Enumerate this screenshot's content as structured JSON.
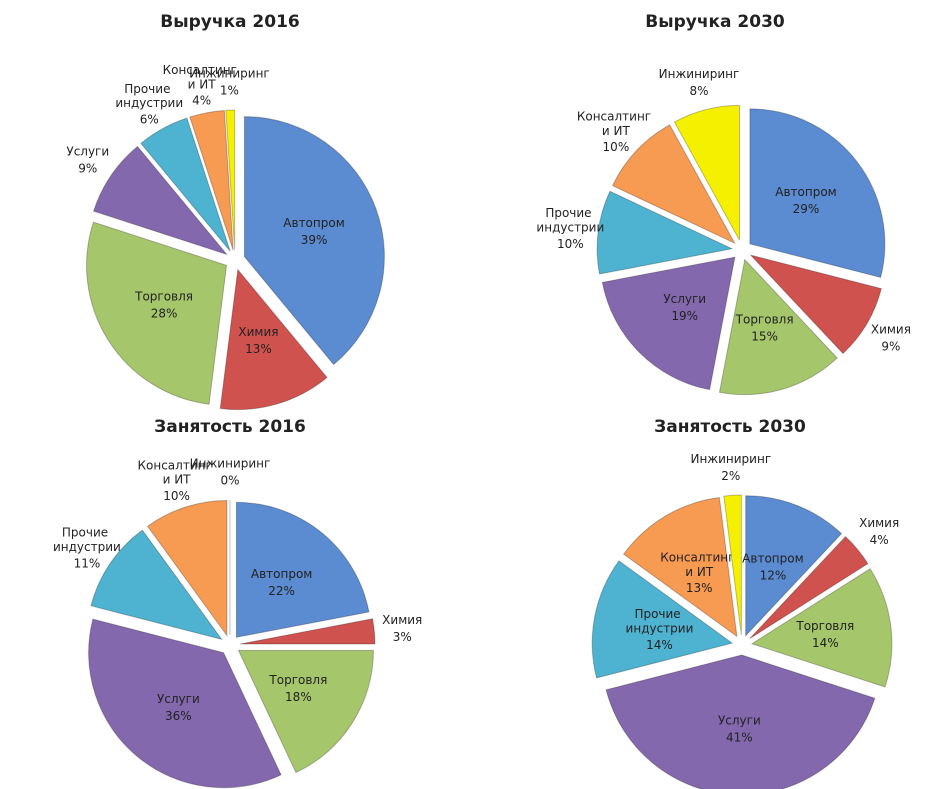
{
  "chart_data": [
    {
      "type": "pie",
      "title": "Выручка 2016",
      "categories": [
        "Автопром",
        "Химия",
        "Торговля",
        "Услуги",
        "Прочие индустрии",
        "Консалтинг и ИТ",
        "Инжиниринг"
      ],
      "values": [
        39,
        13,
        28,
        9,
        6,
        4,
        1
      ],
      "value_labels": [
        "39%",
        "13%",
        "28%",
        "9%",
        "6%",
        "4%",
        "1%"
      ],
      "colors": [
        "#5b8bd0",
        "#d0524e",
        "#a5c66a",
        "#8468ad",
        "#4db3d0",
        "#f79a52",
        "#f5f000"
      ]
    },
    {
      "type": "pie",
      "title": "Выручка 2030",
      "categories": [
        "Автопром",
        "Химия",
        "Торговля",
        "Услуги",
        "Прочие индустрии",
        "Консалтинг и ИТ",
        "Инжиниринг"
      ],
      "values": [
        29,
        9,
        15,
        19,
        10,
        10,
        8
      ],
      "value_labels": [
        "29%",
        "9%",
        "15%",
        "19%",
        "10%",
        "10%",
        "8%"
      ],
      "colors": [
        "#5b8bd0",
        "#d0524e",
        "#a5c66a",
        "#8468ad",
        "#4db3d0",
        "#f79a52",
        "#f5f000"
      ]
    },
    {
      "type": "pie",
      "title": "Занятость 2016",
      "categories": [
        "Автопром",
        "Химия",
        "Торговля",
        "Услуги",
        "Прочие индустрии",
        "Консалтинг и ИТ",
        "Инжиниринг"
      ],
      "values": [
        22,
        3,
        18,
        36,
        11,
        10,
        0
      ],
      "value_labels": [
        "22%",
        "3%",
        "18%",
        "36%",
        "11%",
        "10%",
        "0%"
      ],
      "colors": [
        "#5b8bd0",
        "#d0524e",
        "#a5c66a",
        "#8468ad",
        "#4db3d0",
        "#f79a52",
        "#f5f000"
      ]
    },
    {
      "type": "pie",
      "title": "Занятость 2030",
      "categories": [
        "Автопром",
        "Химия",
        "Торговля",
        "Услуги",
        "Прочие индустрии",
        "Консалтинг и ИТ",
        "Инжиниринг"
      ],
      "values": [
        12,
        4,
        14,
        41,
        14,
        13,
        2
      ],
      "value_labels": [
        "12%",
        "4%",
        "14%",
        "41%",
        "14%",
        "13%",
        "2%"
      ],
      "colors": [
        "#5b8bd0",
        "#d0524e",
        "#a5c66a",
        "#8468ad",
        "#4db3d0",
        "#f79a52",
        "#f5f000"
      ]
    }
  ]
}
